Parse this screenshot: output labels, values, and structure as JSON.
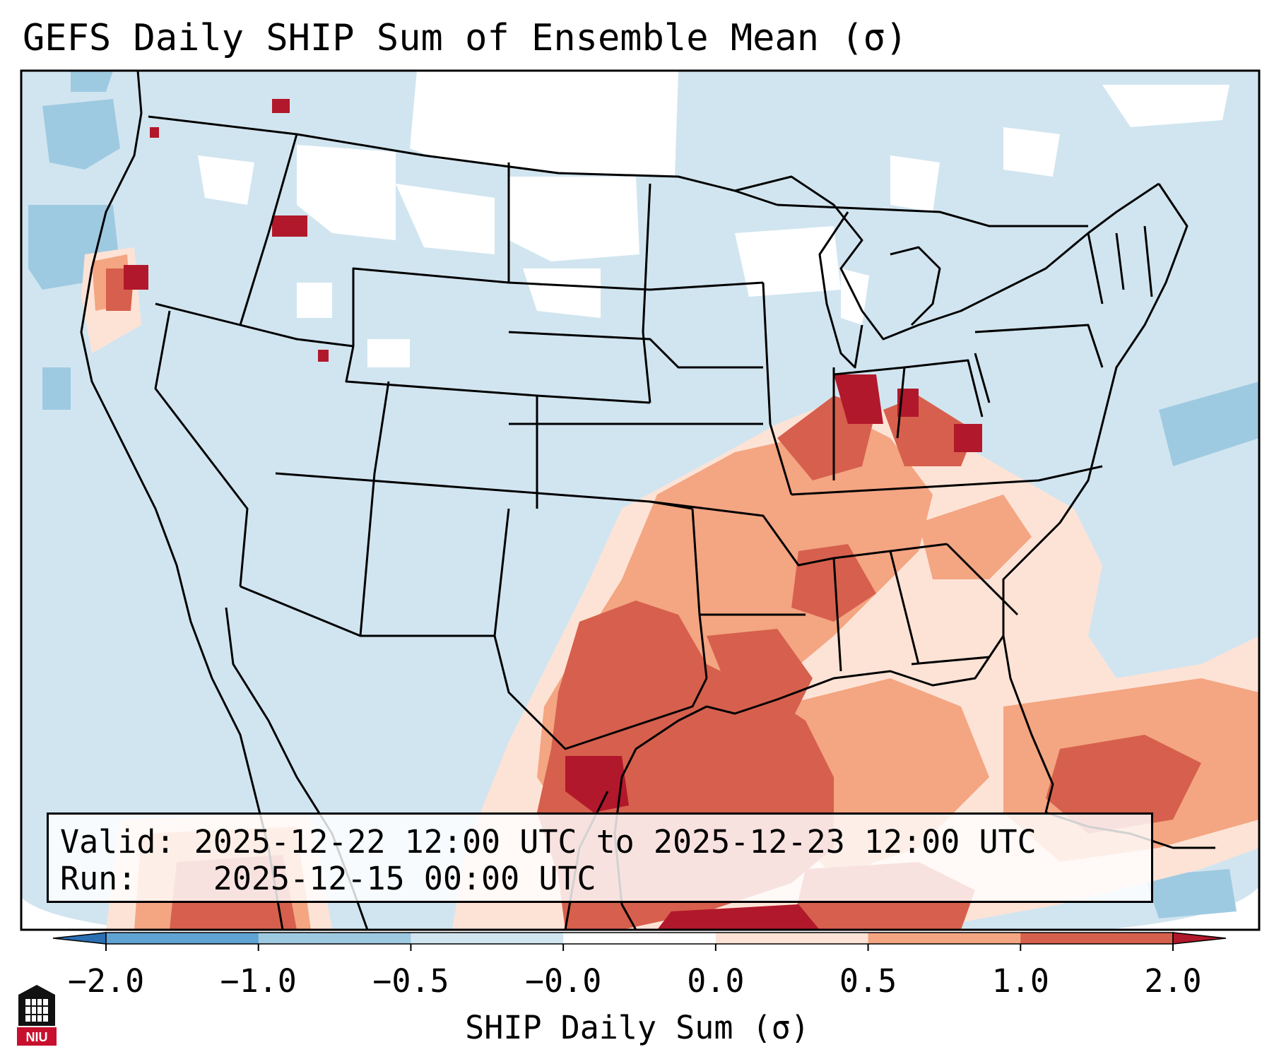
{
  "title": "GEFS Daily SHIP Sum of Ensemble Mean (σ)",
  "info_box": {
    "valid_label": "Valid:",
    "valid_text": "2025-12-22 12:00 UTC to 2025-12-23 12:00 UTC",
    "run_label": "Run:",
    "run_text": "2025-12-15 00:00 UTC"
  },
  "colorbar": {
    "label": "SHIP Daily Sum (σ)",
    "ticks": [
      "−2.0",
      "−1.0",
      "−0.5",
      "−0.0",
      "0.0",
      "0.5",
      "1.0",
      "2.0"
    ],
    "colors": [
      "#2b6fb3",
      "#5fa3d3",
      "#9ecae1",
      "#d1e5f0",
      "#fde3d6",
      "#f4a582",
      "#d6604d",
      "#b2182b"
    ]
  },
  "logo": {
    "text": "NIU"
  }
}
